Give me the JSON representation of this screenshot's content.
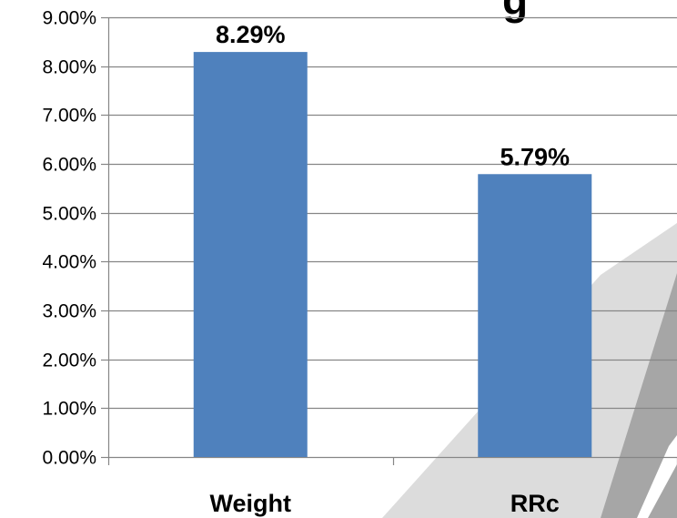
{
  "chart_data": {
    "type": "bar",
    "title_fragment": "g",
    "categories": [
      "Weight",
      "RRc"
    ],
    "values": [
      8.29,
      5.79
    ],
    "data_labels": [
      "8.29%",
      "5.79%"
    ],
    "ylim": [
      0,
      9
    ],
    "yticks": [
      0,
      1,
      2,
      3,
      4,
      5,
      6,
      7,
      8,
      9
    ],
    "ytick_labels": [
      "0.00%",
      "1.00%",
      "2.00%",
      "3.00%",
      "4.00%",
      "5.00%",
      "6.00%",
      "7.00%",
      "8.00%",
      "9.00%"
    ],
    "grid": true,
    "legend": "none",
    "colors": {
      "bar": "#4F81BD",
      "gridline": "#868686",
      "axis": "#868686",
      "decoration_light": "#DCDCDC",
      "decoration_dark": "#A6A6A6"
    }
  }
}
